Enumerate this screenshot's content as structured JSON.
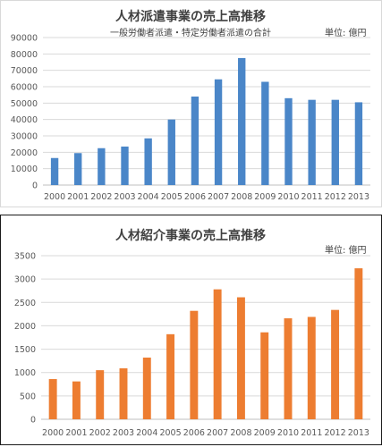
{
  "chart_data": [
    {
      "type": "bar",
      "title": "人材派遣事業の売上高推移",
      "subtitle": "一般労働者派遣・特定労働者派遣の合計",
      "unit_label": "単位: 億円",
      "categories": [
        "2000",
        "2001",
        "2002",
        "2003",
        "2004",
        "2005",
        "2006",
        "2007",
        "2008",
        "2009",
        "2010",
        "2011",
        "2012",
        "2013"
      ],
      "values": [
        16500,
        19500,
        22500,
        23500,
        28500,
        40000,
        54000,
        64500,
        77500,
        63000,
        53000,
        52000,
        52000,
        50500
      ],
      "ylim": [
        0,
        90000
      ],
      "yticks": [
        0,
        10000,
        20000,
        30000,
        40000,
        50000,
        60000,
        70000,
        80000,
        90000
      ],
      "grid": true,
      "bar_color": "#4a86c8"
    },
    {
      "type": "bar",
      "title": "人材紹介事業の売上高推移",
      "subtitle": "",
      "unit_label": "単位: 億円",
      "categories": [
        "2000",
        "2001",
        "2002",
        "2003",
        "2004",
        "2005",
        "2006",
        "2007",
        "2008",
        "2009",
        "2010",
        "2011",
        "2012",
        "2013"
      ],
      "values": [
        860,
        810,
        1050,
        1090,
        1320,
        1820,
        2320,
        2780,
        2610,
        1860,
        2160,
        2190,
        2340,
        3230
      ],
      "ylim": [
        0,
        3500
      ],
      "yticks": [
        0,
        500,
        1000,
        1500,
        2000,
        2500,
        3000,
        3500
      ],
      "grid": true,
      "bar_color": "#ed7d31"
    }
  ]
}
